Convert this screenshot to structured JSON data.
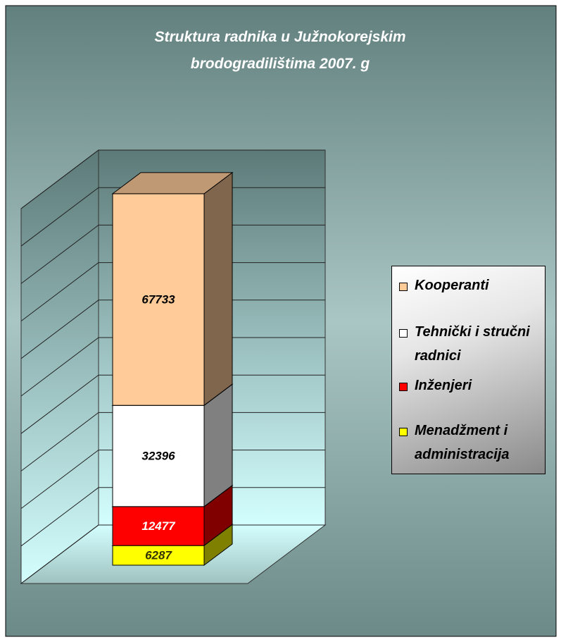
{
  "chart_data": {
    "type": "bar3d_stacked",
    "title": "Struktura radnika u Južnokorejskim brodogradilištima 2007. g",
    "categories": [
      null
    ],
    "series": [
      {
        "name": "Kooperanti",
        "color": "#ffcc99",
        "values": [
          67733
        ]
      },
      {
        "name": "Tehnički i stručni radnici",
        "color": "#ffffff",
        "values": [
          32396
        ]
      },
      {
        "name": "Inženjeri",
        "color": "#ff0000",
        "values": [
          12477
        ]
      },
      {
        "name": "Menadžment i administracija",
        "color": "#ffff00",
        "values": [
          6287
        ]
      }
    ],
    "ylim": [
      0,
      120000
    ],
    "yticks": [
      0,
      12000,
      24000,
      36000,
      48000,
      60000,
      72000,
      84000,
      96000,
      108000,
      120000
    ],
    "grid": true,
    "legend": "right"
  }
}
